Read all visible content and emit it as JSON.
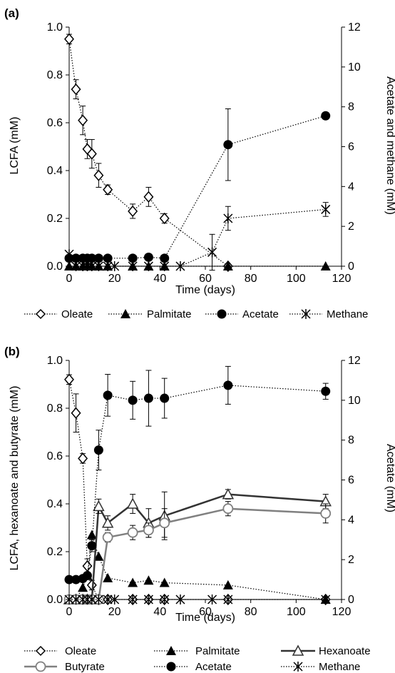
{
  "chart_data": [
    {
      "type": "line",
      "panel_label": "(a)",
      "xlabel": "Time (days)",
      "ylabel": "LCFA (mM)",
      "y2label": "Acetate and methane (mM)",
      "xlim": [
        0,
        120
      ],
      "ylim": [
        0,
        1.0
      ],
      "y2lim": [
        0,
        12
      ],
      "xticks": [
        "0",
        "20",
        "40",
        "60",
        "80",
        "100",
        "120"
      ],
      "yticks": [
        "0.0",
        "0.2",
        "0.4",
        "0.6",
        "0.8",
        "1.0"
      ],
      "y2ticks": [
        "0",
        "2",
        "4",
        "6",
        "8",
        "10",
        "12"
      ],
      "grid": false,
      "legend_position": "bottom",
      "series": [
        {
          "name": "Oleate",
          "axis": "left",
          "marker": "diamond-open",
          "line": "dotted",
          "x": [
            0,
            3,
            6,
            8,
            10,
            13,
            17,
            28,
            35,
            42,
            70
          ],
          "y": [
            0.95,
            0.74,
            0.61,
            0.49,
            0.47,
            0.38,
            0.32,
            0.23,
            0.29,
            0.2,
            0.0
          ],
          "err": [
            0.02,
            0.04,
            0.06,
            0.04,
            0.06,
            0.05,
            0.02,
            0.03,
            0.04,
            0.02,
            0.0
          ]
        },
        {
          "name": "Palmitate",
          "axis": "left",
          "marker": "triangle-filled",
          "line": "dotted",
          "x": [
            0,
            3,
            6,
            8,
            10,
            13,
            17,
            28,
            35,
            42,
            70,
            113
          ],
          "y": [
            0,
            0,
            0,
            0,
            0,
            0,
            0,
            0,
            0,
            0,
            0,
            0
          ]
        },
        {
          "name": "Acetate",
          "axis": "right",
          "marker": "circle-filled",
          "line": "dotted",
          "x": [
            0,
            3,
            6,
            8,
            10,
            13,
            17,
            28,
            35,
            42,
            70,
            113
          ],
          "y": [
            0.4,
            0.4,
            0.4,
            0.4,
            0.4,
            0.4,
            0.4,
            0.4,
            0.45,
            0.4,
            6.1,
            7.55
          ],
          "err": [
            0,
            0,
            0,
            0,
            0,
            0,
            0,
            0,
            0,
            0,
            1.8,
            0.1
          ]
        },
        {
          "name": "Methane",
          "axis": "right",
          "marker": "asterisk",
          "line": "dotted",
          "x": [
            0,
            3,
            6,
            8,
            10,
            13,
            17,
            20,
            28,
            35,
            42,
            49,
            63,
            70,
            113
          ],
          "y": [
            0.6,
            0.0,
            0.0,
            0.0,
            0.0,
            0.0,
            0.0,
            0.0,
            0.0,
            0.0,
            0.0,
            0.0,
            0.7,
            2.4,
            2.85
          ],
          "err": [
            0,
            0,
            0,
            0,
            0,
            0,
            0,
            0,
            0,
            0,
            0,
            0,
            0.9,
            0.6,
            0.35
          ]
        }
      ]
    },
    {
      "type": "line",
      "panel_label": "(b)",
      "xlabel": "Time (days)",
      "ylabel": "LCFA, hexanoate and butyrate (mM)",
      "y2label": "Acetate (mM)",
      "xlim": [
        0,
        120
      ],
      "ylim": [
        0,
        1.0
      ],
      "y2lim": [
        0,
        12
      ],
      "xticks": [
        "0",
        "20",
        "40",
        "60",
        "80",
        "100",
        "120"
      ],
      "yticks": [
        "0.0",
        "0.2",
        "0.4",
        "0.6",
        "0.8",
        "1.0"
      ],
      "y2ticks": [
        "0",
        "2",
        "4",
        "6",
        "8",
        "10",
        "12"
      ],
      "grid": false,
      "legend_position": "bottom",
      "series": [
        {
          "name": "Oleate",
          "axis": "left",
          "marker": "diamond-open",
          "line": "dotted",
          "x": [
            0,
            3,
            6,
            8,
            10,
            13,
            17,
            28,
            35,
            42,
            70,
            113
          ],
          "y": [
            0.92,
            0.78,
            0.59,
            0.14,
            0.06,
            0.0,
            0.0,
            0.0,
            0.0,
            0.0,
            0.0,
            0.0
          ],
          "err": [
            0.02,
            0.08,
            0.02,
            0.03,
            0.02,
            0,
            0,
            0,
            0,
            0,
            0,
            0
          ]
        },
        {
          "name": "Palmitate",
          "axis": "left",
          "marker": "triangle-filled",
          "line": "dotted",
          "x": [
            0,
            3,
            6,
            8,
            10,
            13,
            17,
            28,
            35,
            42,
            70,
            113
          ],
          "y": [
            0.0,
            0.0,
            0.05,
            0.1,
            0.27,
            0.18,
            0.09,
            0.07,
            0.08,
            0.07,
            0.06,
            0.0
          ]
        },
        {
          "name": "Hexanoate",
          "axis": "left",
          "marker": "triangle-open",
          "line": "solid-dark",
          "x": [
            0,
            3,
            6,
            8,
            10,
            13,
            17,
            28,
            35,
            42,
            70,
            113
          ],
          "y": [
            0,
            0,
            0,
            0,
            0,
            0.39,
            0.32,
            0.4,
            0.32,
            0.35,
            0.44,
            0.41
          ],
          "err": [
            0,
            0,
            0,
            0,
            0,
            0.03,
            0.03,
            0.04,
            0.06,
            0.1,
            0.02,
            0.03
          ]
        },
        {
          "name": "Butyrate",
          "axis": "left",
          "marker": "circle-open",
          "line": "solid-gray",
          "x": [
            0,
            3,
            6,
            8,
            10,
            13,
            17,
            28,
            35,
            42,
            70,
            113
          ],
          "y": [
            0,
            0,
            0,
            0,
            0,
            0,
            0.26,
            0.28,
            0.29,
            0.32,
            0.38,
            0.36
          ],
          "err": [
            0,
            0,
            0,
            0,
            0,
            0,
            0.02,
            0.03,
            0.03,
            0.06,
            0.03,
            0.04
          ]
        },
        {
          "name": "Acetate",
          "axis": "right",
          "marker": "circle-filled",
          "line": "dotted",
          "x": [
            0,
            3,
            6,
            8,
            10,
            13,
            17,
            28,
            35,
            42,
            70,
            113
          ],
          "y": [
            1.0,
            1.0,
            1.05,
            1.2,
            2.7,
            7.5,
            10.25,
            10.0,
            10.1,
            10.1,
            10.75,
            10.45
          ],
          "err": [
            0,
            0,
            0,
            0.15,
            0.3,
            1.0,
            1.05,
            0.95,
            1.4,
            1.0,
            0.95,
            0.4
          ]
        },
        {
          "name": "Methane",
          "axis": "right",
          "marker": "asterisk",
          "line": "dotted",
          "x": [
            0,
            3,
            6,
            8,
            10,
            13,
            17,
            20,
            28,
            35,
            42,
            49,
            63,
            70,
            113
          ],
          "y": [
            0,
            0,
            0,
            0,
            0,
            0,
            0,
            0,
            0,
            0,
            0,
            0,
            0,
            0,
            0
          ]
        }
      ]
    }
  ]
}
